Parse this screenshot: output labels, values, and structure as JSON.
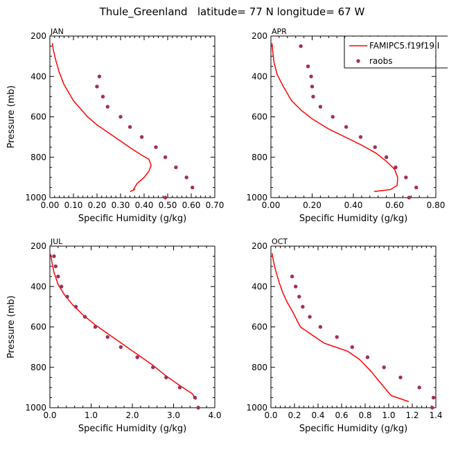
{
  "figure": {
    "title": "Thule_Greenland   latitude= 77 N longitude= 67 W"
  },
  "legend": {
    "entries": [
      "FAMIPC5.f19f19.I",
      "raobs"
    ],
    "line_color": "#ff0000",
    "marker_color": "#a0305a"
  },
  "chart_data": [
    {
      "type": "line",
      "label": "JAN",
      "xlabel": "Specific Humidity (g/kg)",
      "ylabel": "Pressure (mb)",
      "xlim": [
        0,
        0.7
      ],
      "ylim": [
        1000,
        200
      ],
      "xticks": [
        0,
        0.1,
        0.2,
        0.3,
        0.4,
        0.5,
        0.6,
        0.7
      ],
      "xtick_labels": [
        "0.00",
        "0.10",
        "0.20",
        "0.30",
        "0.40",
        "0.50",
        "0.60",
        "0.70"
      ],
      "yticks": [
        200,
        400,
        600,
        800,
        1000
      ],
      "ytick_labels": [
        "200",
        "400",
        "600",
        "800",
        "1000"
      ],
      "series": [
        {
          "name": "FAMIPC5.f19f19.I",
          "kind": "line",
          "color": "#ff0000",
          "x": [
            0.01,
            0.015,
            0.025,
            0.04,
            0.06,
            0.08,
            0.1,
            0.13,
            0.16,
            0.2,
            0.25,
            0.3,
            0.35,
            0.39,
            0.42,
            0.43,
            0.42,
            0.4,
            0.37,
            0.355,
            0.36,
            0.34
          ],
          "y": [
            235,
            270,
            320,
            380,
            440,
            480,
            520,
            560,
            600,
            640,
            680,
            720,
            760,
            790,
            810,
            840,
            870,
            900,
            930,
            960,
            960,
            970
          ]
        },
        {
          "name": "raobs",
          "kind": "scatter",
          "color": "#a0305a",
          "x": [
            0.21,
            0.2,
            0.225,
            0.245,
            0.3,
            0.34,
            0.39,
            0.45,
            0.49,
            0.535,
            0.58,
            0.605,
            0.49
          ],
          "y": [
            400,
            450,
            500,
            550,
            600,
            650,
            700,
            750,
            800,
            850,
            900,
            950,
            1000
          ]
        }
      ]
    },
    {
      "type": "line",
      "label": "APR",
      "xlabel": "Specific Humidity (g/kg)",
      "ylabel": "",
      "xlim": [
        0,
        0.8
      ],
      "ylim": [
        1000,
        200
      ],
      "xticks": [
        0,
        0.2,
        0.4,
        0.6,
        0.8
      ],
      "xtick_labels": [
        "0.00",
        "0.20",
        "0.40",
        "0.60",
        "0.80"
      ],
      "yticks": [
        200,
        400,
        600,
        800,
        1000
      ],
      "ytick_labels": [
        "200",
        "400",
        "600",
        "800",
        "1000"
      ],
      "series": [
        {
          "name": "FAMIPC5.f19f19.I",
          "kind": "line",
          "color": "#ff0000",
          "x": [
            0.005,
            0.008,
            0.015,
            0.03,
            0.06,
            0.1,
            0.15,
            0.2,
            0.28,
            0.36,
            0.44,
            0.51,
            0.56,
            0.6,
            0.615,
            0.612,
            0.58,
            0.5
          ],
          "y": [
            235,
            270,
            330,
            390,
            450,
            520,
            570,
            610,
            660,
            700,
            740,
            780,
            820,
            860,
            900,
            940,
            960,
            970
          ]
        },
        {
          "name": "raobs",
          "kind": "scatter",
          "color": "#a0305a",
          "x": [
            0.145,
            0.18,
            0.195,
            0.2,
            0.205,
            0.24,
            0.3,
            0.365,
            0.435,
            0.505,
            0.56,
            0.605,
            0.655,
            0.705,
            0.67
          ],
          "y": [
            250,
            350,
            400,
            450,
            500,
            550,
            600,
            650,
            700,
            750,
            800,
            850,
            900,
            950,
            1000
          ]
        }
      ]
    },
    {
      "type": "line",
      "label": "JUL",
      "xlabel": "Specific Humidity (g/kg)",
      "ylabel": "Pressure (mb)",
      "xlim": [
        0,
        4.0
      ],
      "ylim": [
        1000,
        200
      ],
      "xticks": [
        0,
        1,
        2,
        3,
        4
      ],
      "xtick_labels": [
        "0.0",
        "1.0",
        "2.0",
        "3.0",
        "4.0"
      ],
      "yticks": [
        200,
        400,
        600,
        800,
        1000
      ],
      "ytick_labels": [
        "200",
        "400",
        "600",
        "800",
        "1000"
      ],
      "series": [
        {
          "name": "FAMIPC5.f19f19.I",
          "kind": "line",
          "color": "#ff0000",
          "x": [
            0.02,
            0.05,
            0.1,
            0.2,
            0.35,
            0.55,
            0.8,
            1.1,
            1.45,
            1.8,
            2.15,
            2.5,
            2.8,
            3.15,
            3.45,
            3.55
          ],
          "y": [
            240,
            280,
            330,
            390,
            440,
            490,
            540,
            590,
            640,
            690,
            740,
            790,
            840,
            890,
            930,
            960
          ]
        },
        {
          "name": "raobs",
          "kind": "scatter",
          "color": "#a0305a",
          "x": [
            0.1,
            0.14,
            0.2,
            0.28,
            0.42,
            0.63,
            0.85,
            1.1,
            1.4,
            1.72,
            2.12,
            2.5,
            2.82,
            3.15,
            3.52,
            3.6
          ],
          "y": [
            250,
            300,
            350,
            400,
            450,
            500,
            550,
            600,
            650,
            700,
            750,
            800,
            850,
            900,
            950,
            1000
          ]
        }
      ]
    },
    {
      "type": "line",
      "label": "OCT",
      "xlabel": "Specific Humidity (g/kg)",
      "ylabel": "",
      "xlim": [
        0,
        1.4
      ],
      "ylim": [
        1000,
        200
      ],
      "xticks": [
        0,
        0.2,
        0.4,
        0.6,
        0.8,
        1.0,
        1.2,
        1.4
      ],
      "xtick_labels": [
        "0.0",
        "0.2",
        "0.4",
        "0.6",
        "0.8",
        "1.0",
        "1.2",
        "1.4"
      ],
      "yticks": [
        200,
        400,
        600,
        800,
        1000
      ],
      "ytick_labels": [
        "200",
        "400",
        "600",
        "800",
        "1000"
      ],
      "series": [
        {
          "name": "FAMIPC5.f19f19.I",
          "kind": "line",
          "color": "#ff0000",
          "x": [
            0.01,
            0.02,
            0.04,
            0.07,
            0.1,
            0.14,
            0.18,
            0.25,
            0.35,
            0.45,
            0.55,
            0.65,
            0.75,
            0.85,
            0.92,
            1.02,
            1.17
          ],
          "y": [
            235,
            270,
            320,
            380,
            430,
            480,
            520,
            600,
            640,
            680,
            700,
            720,
            760,
            820,
            870,
            940,
            970
          ]
        },
        {
          "name": "raobs",
          "kind": "scatter",
          "color": "#a0305a",
          "x": [
            0.18,
            0.21,
            0.24,
            0.27,
            0.33,
            0.42,
            0.56,
            0.69,
            0.82,
            0.96,
            1.1,
            1.26,
            1.38,
            1.37
          ],
          "y": [
            350,
            400,
            450,
            500,
            550,
            600,
            650,
            700,
            750,
            800,
            850,
            900,
            950,
            1000
          ]
        }
      ]
    }
  ]
}
